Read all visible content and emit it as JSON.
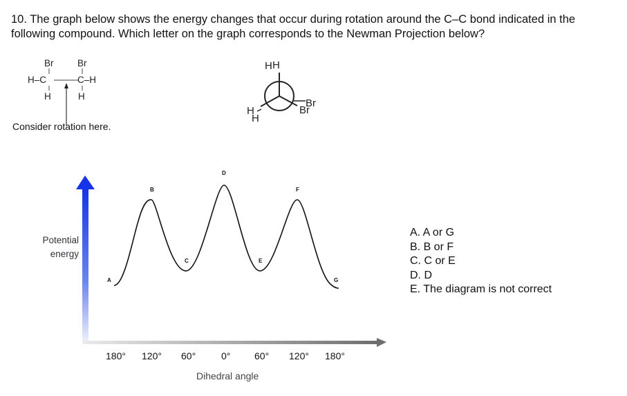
{
  "question": "10. The graph below shows the energy changes that occur during rotation around the C–C bond indicated in the following compound. Which letter on the graph corresponds to the Newman Projection below?",
  "molecule": {
    "atoms_top": [
      "Br",
      "Br"
    ],
    "left_group": "H–C",
    "right_group": "C–H",
    "atoms_bottom": [
      "H",
      "H"
    ],
    "caption": "Consider rotation here."
  },
  "newman": {
    "front_top": "H",
    "back_top": "H",
    "front_right": "Br",
    "back_right": "Br",
    "front_left": "H",
    "back_left": "H"
  },
  "chart_data": {
    "type": "line",
    "title": "",
    "xlabel": "Dihedral angle",
    "ylabel": "Potential energy",
    "x_ticks": [
      "180°",
      "120°",
      "60°",
      "0°",
      "60°",
      "120°",
      "180°"
    ],
    "points": [
      {
        "label": "A",
        "x": "180°",
        "level": "low"
      },
      {
        "label": "B",
        "x": "120°",
        "level": "high"
      },
      {
        "label": "C",
        "x": "60°",
        "level": "low"
      },
      {
        "label": "D",
        "x": "0°",
        "level": "highest"
      },
      {
        "label": "E",
        "x": "60°",
        "level": "low"
      },
      {
        "label": "F",
        "x": "120°",
        "level": "high"
      },
      {
        "label": "G",
        "x": "180°",
        "level": "low"
      }
    ]
  },
  "answers": [
    "A.  A or G",
    "B.  B or F",
    "C.  C or E",
    "D.  D",
    "E.  The diagram is not correct"
  ]
}
